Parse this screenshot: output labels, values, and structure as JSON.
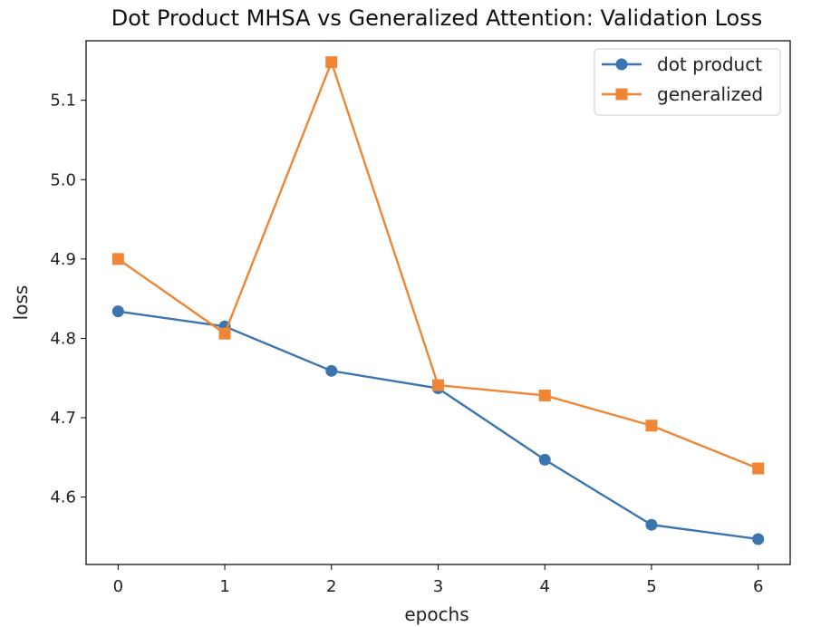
{
  "chart_data": {
    "type": "line",
    "title": "Dot Product MHSA vs Generalized Attention: Validation Loss",
    "xlabel": "epochs",
    "ylabel": "loss",
    "x": [
      0,
      1,
      2,
      3,
      4,
      5,
      6
    ],
    "x_ticks": [
      "0",
      "1",
      "2",
      "3",
      "4",
      "5",
      "6"
    ],
    "y_ticks": [
      "4.6",
      "4.7",
      "4.8",
      "4.9",
      "5.0",
      "5.1"
    ],
    "xlim": [
      -0.3,
      6.3
    ],
    "ylim": [
      4.515,
      5.175
    ],
    "grid": false,
    "legend_position": "top-right",
    "series": [
      {
        "name": "dot product",
        "marker": "circle",
        "color": "#3b75af",
        "values": [
          4.834,
          4.815,
          4.759,
          4.737,
          4.647,
          4.565,
          4.547
        ]
      },
      {
        "name": "generalized",
        "marker": "square",
        "color": "#ef8636",
        "values": [
          4.9,
          4.806,
          5.148,
          4.741,
          4.728,
          4.69,
          4.636
        ]
      }
    ]
  }
}
